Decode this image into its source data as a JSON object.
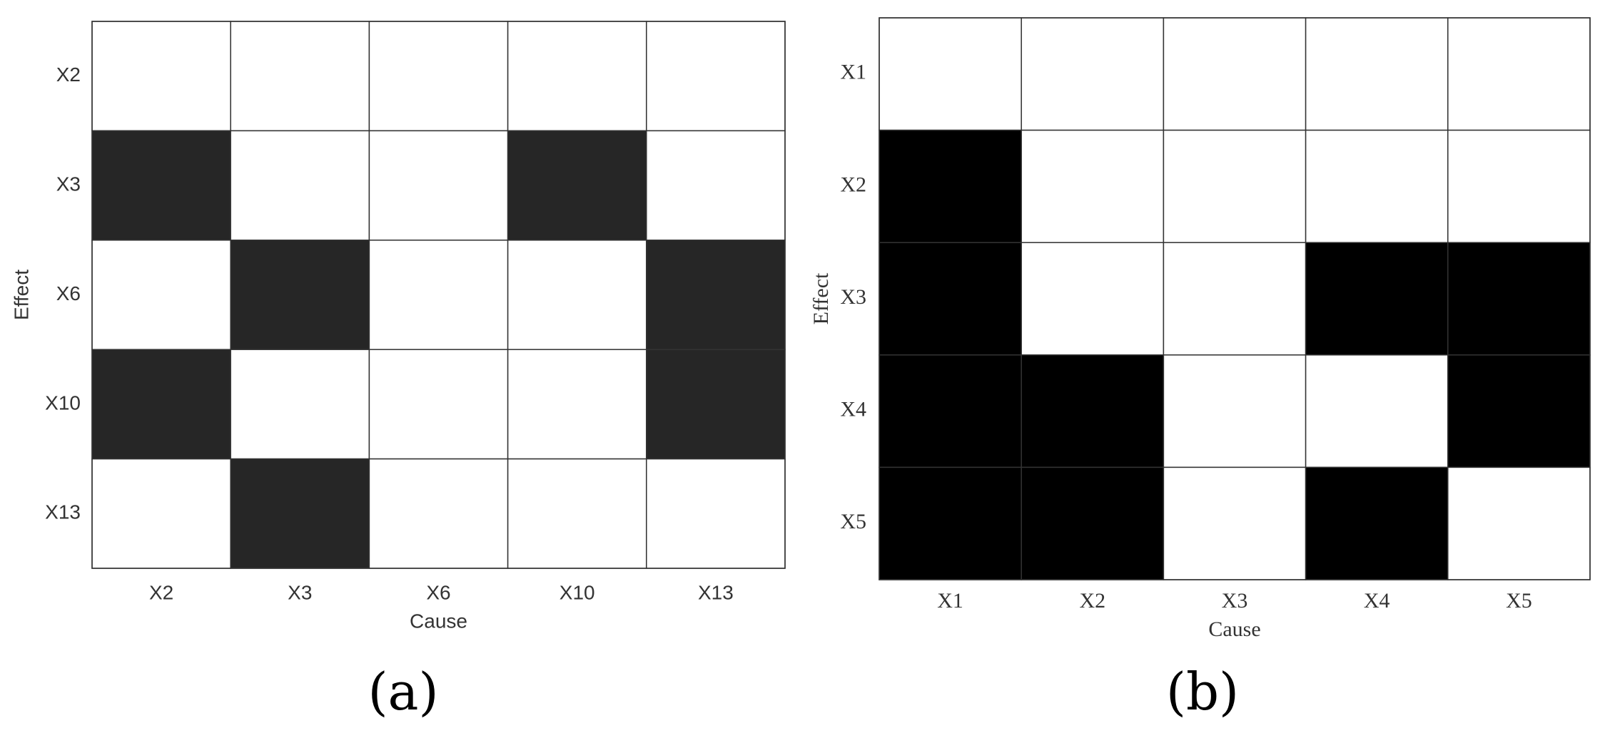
{
  "chart_data": [
    {
      "type": "heatmap",
      "panel_label": "(a)",
      "x_label": "Cause",
      "y_label": "Effect",
      "x_categories": [
        "X2",
        "X3",
        "X6",
        "X10",
        "X13"
      ],
      "y_categories": [
        "X2",
        "X3",
        "X6",
        "X10",
        "X13"
      ],
      "values": [
        [
          0,
          0,
          0,
          0,
          0
        ],
        [
          1,
          0,
          0,
          1,
          0
        ],
        [
          0,
          1,
          0,
          0,
          1
        ],
        [
          1,
          0,
          0,
          0,
          1
        ],
        [
          0,
          1,
          0,
          0,
          0
        ]
      ],
      "colors": [
        "#ffffff",
        "#262626"
      ],
      "font": "sans"
    },
    {
      "type": "heatmap",
      "panel_label": "(b)",
      "x_label": "Cause",
      "y_label": "Effect",
      "x_categories": [
        "X1",
        "X2",
        "X3",
        "X4",
        "X5"
      ],
      "y_categories": [
        "X1",
        "X2",
        "X3",
        "X4",
        "X5"
      ],
      "values": [
        [
          0,
          0,
          0,
          0,
          0
        ],
        [
          1,
          0,
          0,
          0,
          0
        ],
        [
          1,
          0,
          0,
          1,
          1
        ],
        [
          1,
          1,
          0,
          0,
          1
        ],
        [
          1,
          1,
          0,
          1,
          0
        ]
      ],
      "colors": [
        "#ffffff",
        "#000000"
      ],
      "font": "serif"
    }
  ]
}
